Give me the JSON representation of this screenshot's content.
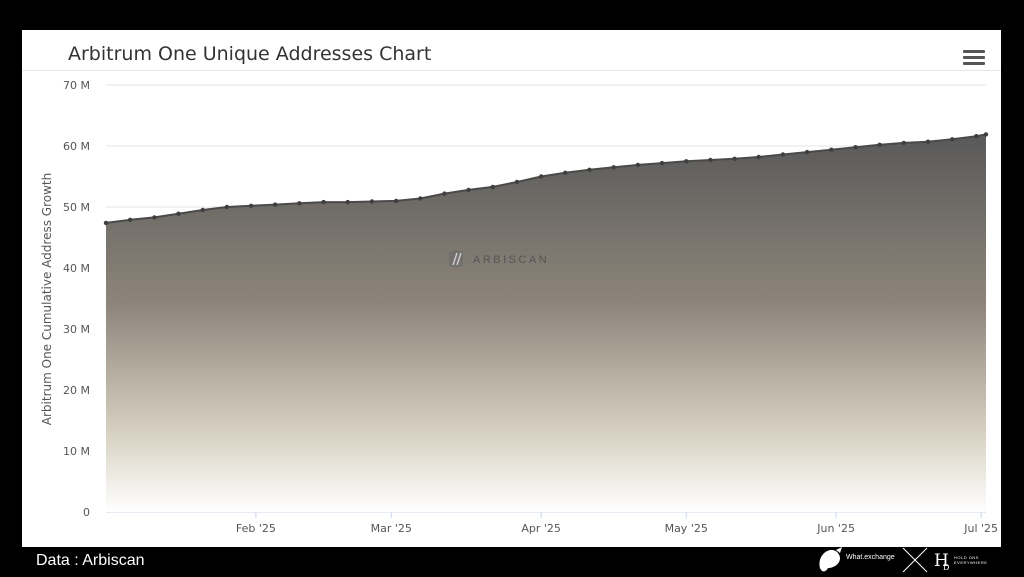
{
  "colors": {
    "page_background": "#000000",
    "panel_background": "#ffffff",
    "area_top": "#595959",
    "area_bottom": "#ffffff",
    "line": "#4a4a4a"
  },
  "header": {
    "title": "Arbitrum One Unique Addresses Chart",
    "menu_icon": "hamburger-menu-icon"
  },
  "watermark": {
    "text": "ARBISCAN",
    "icon": "arbiscan-logo-icon"
  },
  "footer": {
    "credit": "Data : Arbiscan",
    "logo_left_text": "What.exchange",
    "logo_left_icon": "whale-logo-icon",
    "separator_icon": "x-icon",
    "logo_right_icon": "hd-monogram-icon",
    "logo_right_text": "HOLD ONS EVERYWHERE"
  },
  "chart_data": {
    "type": "area",
    "title": "Arbitrum One Unique Addresses Chart",
    "ylabel": "Arbitrum One Cumulative Address Growth",
    "xlabel": "",
    "ylim": [
      0,
      70000000
    ],
    "xlim": [
      "2025-01-01",
      "2025-07-02"
    ],
    "y_ticks": [
      {
        "value": 0,
        "label": "0"
      },
      {
        "value": 10000000,
        "label": "10 M"
      },
      {
        "value": 20000000,
        "label": "20 M"
      },
      {
        "value": 30000000,
        "label": "30 M"
      },
      {
        "value": 40000000,
        "label": "40 M"
      },
      {
        "value": 50000000,
        "label": "50 M"
      },
      {
        "value": 60000000,
        "label": "60 M"
      },
      {
        "value": 70000000,
        "label": "70 M"
      }
    ],
    "x_ticks": [
      {
        "value": "2025-02-01",
        "label": "Feb '25"
      },
      {
        "value": "2025-03-01",
        "label": "Mar '25"
      },
      {
        "value": "2025-04-01",
        "label": "Apr '25"
      },
      {
        "value": "2025-05-01",
        "label": "May '25"
      },
      {
        "value": "2025-06-01",
        "label": "Jun '25"
      },
      {
        "value": "2025-07-01",
        "label": "Jul '25"
      }
    ],
    "grid": true,
    "legend": "none",
    "series": [
      {
        "points": [
          {
            "x": "2025-01-01",
            "y": 47400000
          },
          {
            "x": "2025-01-06",
            "y": 47900000
          },
          {
            "x": "2025-01-11",
            "y": 48300000
          },
          {
            "x": "2025-01-16",
            "y": 48900000
          },
          {
            "x": "2025-01-21",
            "y": 49500000
          },
          {
            "x": "2025-01-26",
            "y": 50000000
          },
          {
            "x": "2025-01-31",
            "y": 50200000
          },
          {
            "x": "2025-02-05",
            "y": 50400000
          },
          {
            "x": "2025-02-10",
            "y": 50600000
          },
          {
            "x": "2025-02-15",
            "y": 50800000
          },
          {
            "x": "2025-02-20",
            "y": 50800000
          },
          {
            "x": "2025-02-25",
            "y": 50900000
          },
          {
            "x": "2025-03-02",
            "y": 51000000
          },
          {
            "x": "2025-03-07",
            "y": 51400000
          },
          {
            "x": "2025-03-12",
            "y": 52200000
          },
          {
            "x": "2025-03-17",
            "y": 52800000
          },
          {
            "x": "2025-03-22",
            "y": 53300000
          },
          {
            "x": "2025-03-27",
            "y": 54100000
          },
          {
            "x": "2025-04-01",
            "y": 55000000
          },
          {
            "x": "2025-04-06",
            "y": 55600000
          },
          {
            "x": "2025-04-11",
            "y": 56100000
          },
          {
            "x": "2025-04-16",
            "y": 56500000
          },
          {
            "x": "2025-04-21",
            "y": 56900000
          },
          {
            "x": "2025-04-26",
            "y": 57200000
          },
          {
            "x": "2025-05-01",
            "y": 57500000
          },
          {
            "x": "2025-05-06",
            "y": 57700000
          },
          {
            "x": "2025-05-11",
            "y": 57900000
          },
          {
            "x": "2025-05-16",
            "y": 58200000
          },
          {
            "x": "2025-05-21",
            "y": 58600000
          },
          {
            "x": "2025-05-26",
            "y": 59000000
          },
          {
            "x": "2025-05-31",
            "y": 59400000
          },
          {
            "x": "2025-06-05",
            "y": 59800000
          },
          {
            "x": "2025-06-10",
            "y": 60200000
          },
          {
            "x": "2025-06-15",
            "y": 60500000
          },
          {
            "x": "2025-06-20",
            "y": 60700000
          },
          {
            "x": "2025-06-25",
            "y": 61100000
          },
          {
            "x": "2025-06-30",
            "y": 61600000
          },
          {
            "x": "2025-07-02",
            "y": 61900000
          }
        ]
      }
    ]
  }
}
